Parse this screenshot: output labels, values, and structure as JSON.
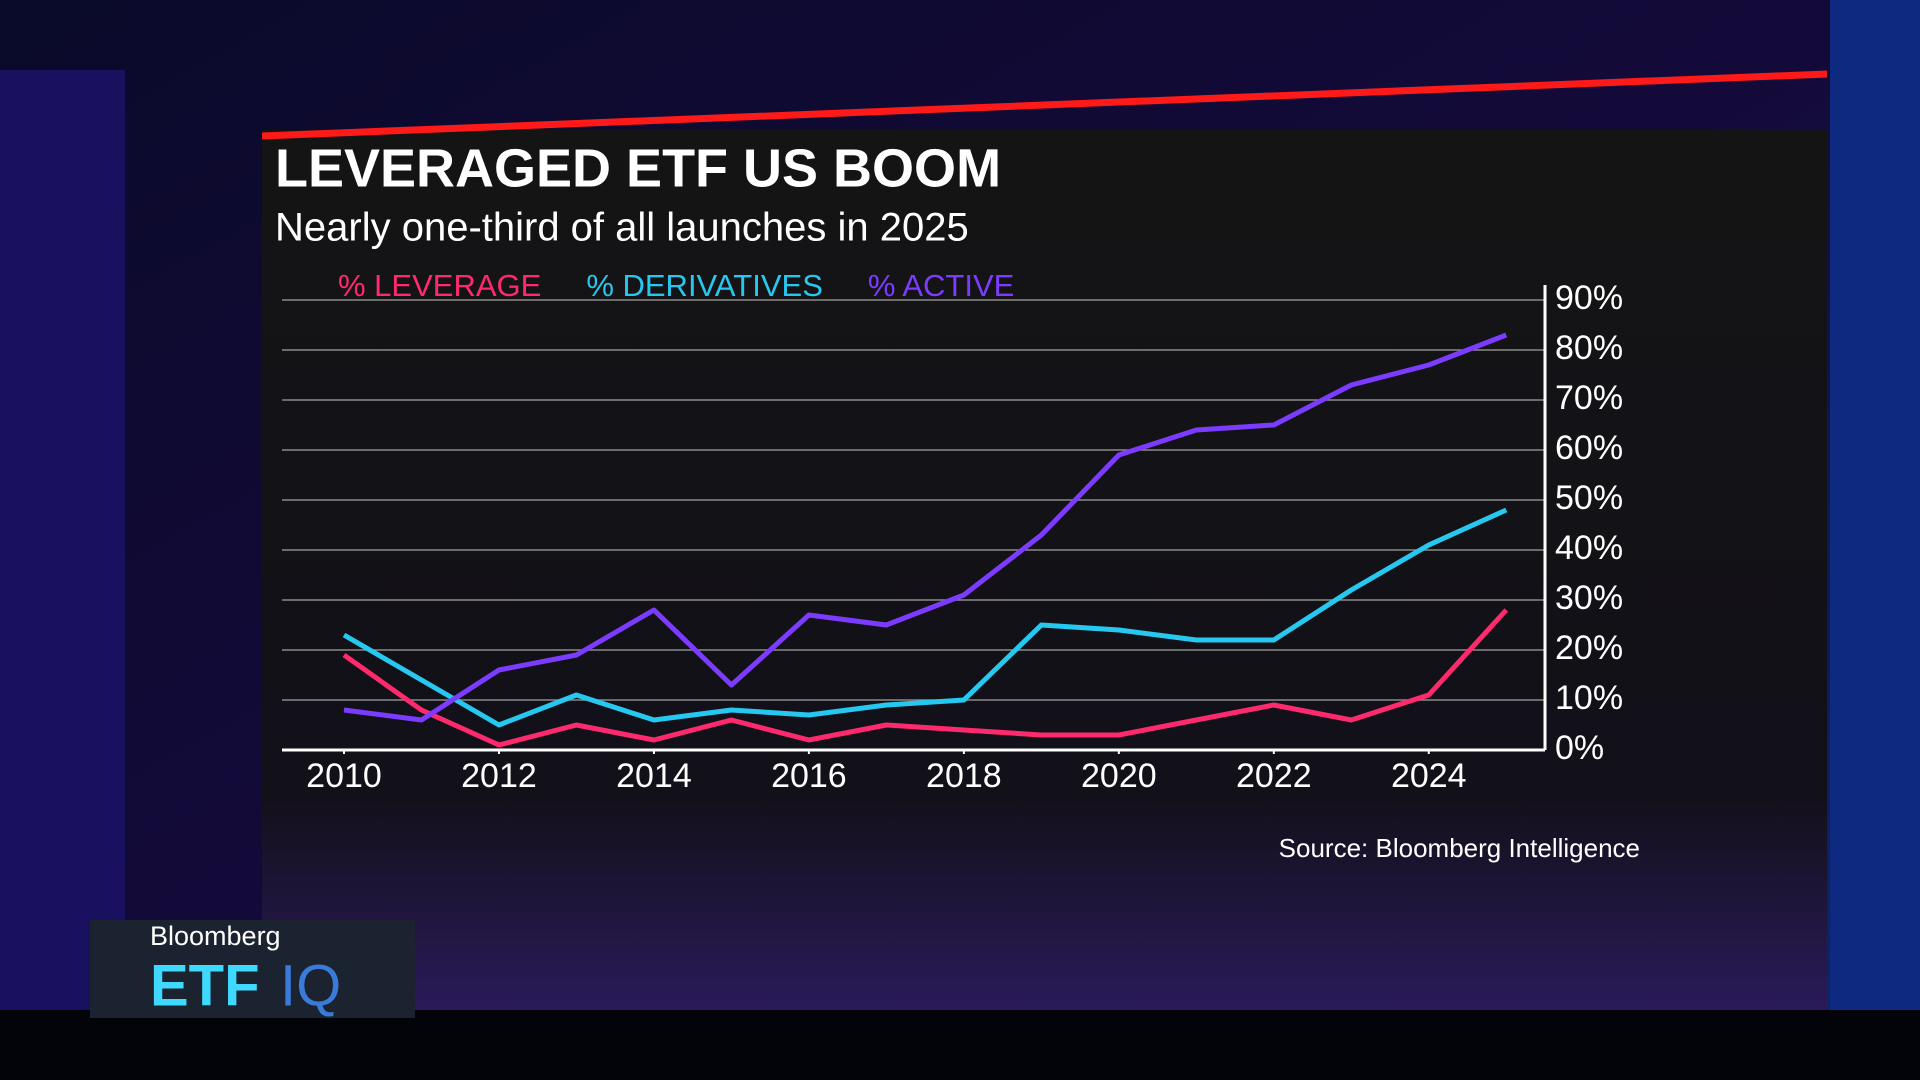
{
  "chart_data": {
    "type": "line",
    "title": "LEVERAGED ETF US BOOM",
    "subtitle": "Nearly one-third of all launches in 2025",
    "source": "Source: Bloomberg Intelligence",
    "x": [
      2010,
      2011,
      2012,
      2013,
      2014,
      2015,
      2016,
      2017,
      2018,
      2019,
      2020,
      2021,
      2022,
      2023,
      2024,
      2025
    ],
    "xlim": [
      2009.2,
      2025.5
    ],
    "xticks": [
      2010,
      2012,
      2014,
      2016,
      2018,
      2020,
      2022,
      2024
    ],
    "ylim": [
      0,
      90
    ],
    "yticks": [
      {
        "value": 0,
        "label": "0%"
      },
      {
        "value": 10,
        "label": "10%"
      },
      {
        "value": 20,
        "label": "20%"
      },
      {
        "value": 30,
        "label": "30%"
      },
      {
        "value": 40,
        "label": "40%"
      },
      {
        "value": 50,
        "label": "50%"
      },
      {
        "value": 60,
        "label": "60%"
      },
      {
        "value": 70,
        "label": "70%"
      },
      {
        "value": 80,
        "label": "80%"
      },
      {
        "value": 90,
        "label": "90%"
      }
    ],
    "grid": true,
    "series": [
      {
        "name": "% LEVERAGE",
        "color": "#ff2a6d",
        "values": [
          19,
          8,
          1,
          5,
          2,
          6,
          2,
          5,
          4,
          3,
          3,
          6,
          9,
          6,
          11,
          28
        ]
      },
      {
        "name": "% DERIVATIVES",
        "color": "#27c8f0",
        "values": [
          23,
          14,
          5,
          11,
          6,
          8,
          7,
          9,
          10,
          25,
          24,
          22,
          22,
          32,
          41,
          48
        ]
      },
      {
        "name": "% ACTIVE",
        "color": "#7b3cff",
        "values": [
          8,
          6,
          16,
          19,
          28,
          13,
          27,
          25,
          31,
          43,
          59,
          64,
          65,
          73,
          77,
          83
        ]
      }
    ]
  },
  "overlay": {
    "brand": "Bloomberg",
    "show_left": "ETF",
    "show_right": "IQ"
  }
}
